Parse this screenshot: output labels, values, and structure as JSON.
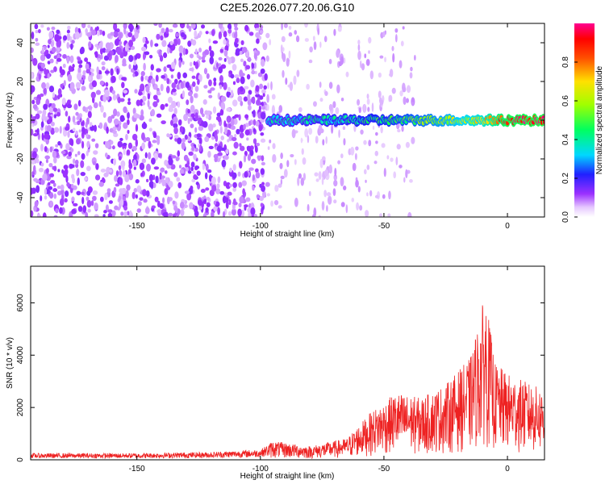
{
  "title": "C2E5.2026.077.20.06.G10",
  "chart_data": [
    {
      "type": "heatmap",
      "panel": "spectrogram",
      "xlabel": "Height of straight line (km)",
      "ylabel": "Frequency (Hz)",
      "xlim": [
        -193,
        15
      ],
      "ylim": [
        -50,
        50
      ],
      "x_ticks": [
        -150,
        -100,
        -50,
        0
      ],
      "y_ticks": [
        -40,
        -20,
        0,
        20,
        40
      ],
      "colorbar": {
        "label": "Normalized spectral amplitude",
        "range": [
          0.0,
          1.0
        ],
        "ticks": [
          0.0,
          0.2,
          0.4,
          0.6,
          0.8
        ],
        "colormap": "rainbow (white→violet→blue→cyan→green→yellow→red→magenta)"
      },
      "signal_trace": {
        "start_height_km": -97,
        "end_height_km": 15,
        "frequency_hz": 0,
        "amplitude_trend": [
          {
            "x": -95,
            "amp": 0.35
          },
          {
            "x": -70,
            "amp": 0.4
          },
          {
            "x": -50,
            "amp": 0.45
          },
          {
            "x": -30,
            "amp": 0.55
          },
          {
            "x": -10,
            "amp": 0.7
          },
          {
            "x": 0,
            "amp": 0.92
          },
          {
            "x": 15,
            "amp": 0.95
          }
        ]
      },
      "noise_region_xlim": [
        -193,
        -97
      ]
    },
    {
      "type": "line",
      "panel": "snr",
      "xlabel": "Height of straight line (km)",
      "ylabel": "SNR (10 * v/v)",
      "xlim": [
        -193,
        15
      ],
      "ylim": [
        0,
        7400
      ],
      "x_ticks": [
        -150,
        -100,
        -50,
        0
      ],
      "y_ticks": [
        0,
        2000,
        4000,
        6000
      ],
      "series_color": "#ee2222",
      "envelope": [
        {
          "x": -193,
          "y": 250
        },
        {
          "x": -150,
          "y": 250
        },
        {
          "x": -120,
          "y": 300
        },
        {
          "x": -100,
          "y": 400
        },
        {
          "x": -95,
          "y": 700
        },
        {
          "x": -80,
          "y": 500
        },
        {
          "x": -65,
          "y": 800
        },
        {
          "x": -55,
          "y": 1800
        },
        {
          "x": -45,
          "y": 2500
        },
        {
          "x": -35,
          "y": 2300
        },
        {
          "x": -25,
          "y": 2800
        },
        {
          "x": -15,
          "y": 3800
        },
        {
          "x": -9,
          "y": 6200
        },
        {
          "x": -5,
          "y": 3600
        },
        {
          "x": 0,
          "y": 3200
        },
        {
          "x": 5,
          "y": 3000
        },
        {
          "x": 15,
          "y": 2600
        }
      ]
    }
  ]
}
